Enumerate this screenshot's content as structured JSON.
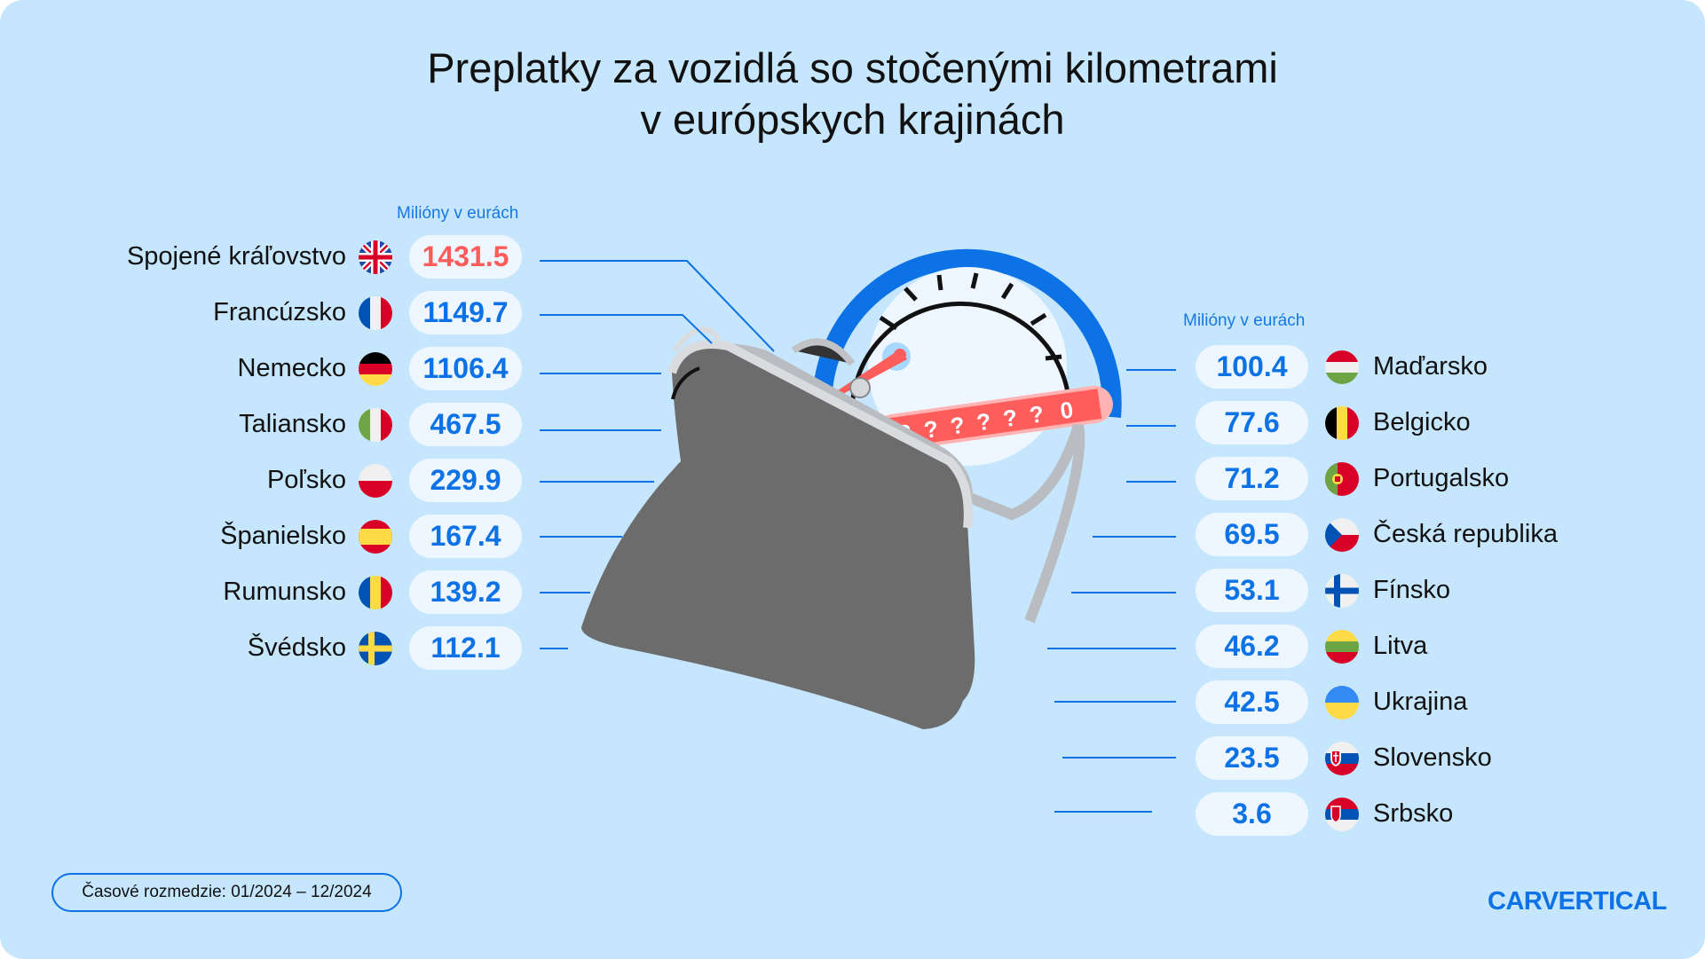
{
  "title": {
    "line1": "Preplatky za vozidlá so stočenými kilometrami",
    "line2": "v európskych krajinách"
  },
  "unit_label": "Milióny v eurách",
  "colors": {
    "background": "#c5e6fd",
    "accent": "#0d72e6",
    "highlight": "#ff5c5c",
    "pill": "#eef7ff"
  },
  "left_countries": [
    {
      "name": "Spojené kráľovstvo",
      "value": "1431.5",
      "flag": "uk-flag-icon",
      "highlight": true
    },
    {
      "name": "Francúzsko",
      "value": "1149.7",
      "flag": "france-flag-icon"
    },
    {
      "name": "Nemecko",
      "value": "1106.4",
      "flag": "germany-flag-icon"
    },
    {
      "name": "Taliansko",
      "value": "467.5",
      "flag": "italy-flag-icon"
    },
    {
      "name": "Poľsko",
      "value": "229.9",
      "flag": "poland-flag-icon"
    },
    {
      "name": "Španielsko",
      "value": "167.4",
      "flag": "spain-flag-icon"
    },
    {
      "name": "Rumunsko",
      "value": "139.2",
      "flag": "romania-flag-icon"
    },
    {
      "name": "Švédsko",
      "value": "112.1",
      "flag": "sweden-flag-icon"
    }
  ],
  "right_countries": [
    {
      "name": "Maďarsko",
      "value": "100.4",
      "flag": "hungary-flag-icon"
    },
    {
      "name": "Belgicko",
      "value": "77.6",
      "flag": "belgium-flag-icon"
    },
    {
      "name": "Portugalsko",
      "value": "71.2",
      "flag": "portugal-flag-icon"
    },
    {
      "name": "Česká republika",
      "value": "69.5",
      "flag": "czech-flag-icon"
    },
    {
      "name": "Fínsko",
      "value": "53.1",
      "flag": "finland-flag-icon"
    },
    {
      "name": "Litva",
      "value": "46.2",
      "flag": "lithuania-flag-icon"
    },
    {
      "name": "Ukrajina",
      "value": "42.5",
      "flag": "ukraine-flag-icon"
    },
    {
      "name": "Slovensko",
      "value": "23.5",
      "flag": "slovakia-flag-icon"
    },
    {
      "name": "Srbsko",
      "value": "3.6",
      "flag": "serbia-flag-icon"
    }
  ],
  "footer": {
    "period": "Časové rozmedzie: 01/2024 – 12/2024"
  },
  "logo": {
    "text": "CARVERTICAL"
  }
}
